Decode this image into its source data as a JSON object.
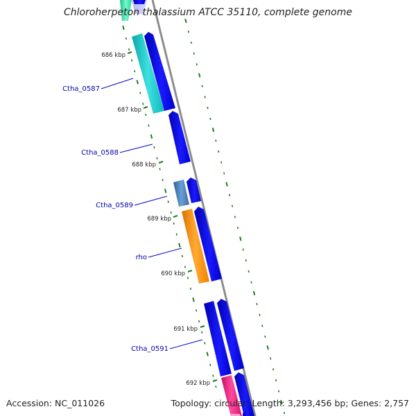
{
  "title": "Chloroherpeton thalassium ATCC 35110, complete genome",
  "footer": {
    "accession": "Accession: NC_011026",
    "summary": "Topology: circular; Length: 3,293,456 bp; Genes: 2,757"
  },
  "colors": {
    "backbone": "#8c8c8c",
    "tick": "#1f7a1f",
    "gene_blue": "#0000e6",
    "gene_cyan": "#19c8c8",
    "gene_steel": "#4a7db5",
    "gene_orange": "#ff8c00",
    "gene_pink": "#e6197a",
    "gene_green": "#2ee6a0",
    "label": "#0000aa"
  },
  "scale_labels": [
    "686 kbp",
    "687 kbp",
    "688 kbp",
    "689 kbp",
    "690 kbp",
    "691 kbp",
    "692 kbp"
  ],
  "gene_labels": [
    "Ctha_0587",
    "Ctha_0588",
    "Ctha_0589",
    "rho",
    "Ctha_0591"
  ]
}
